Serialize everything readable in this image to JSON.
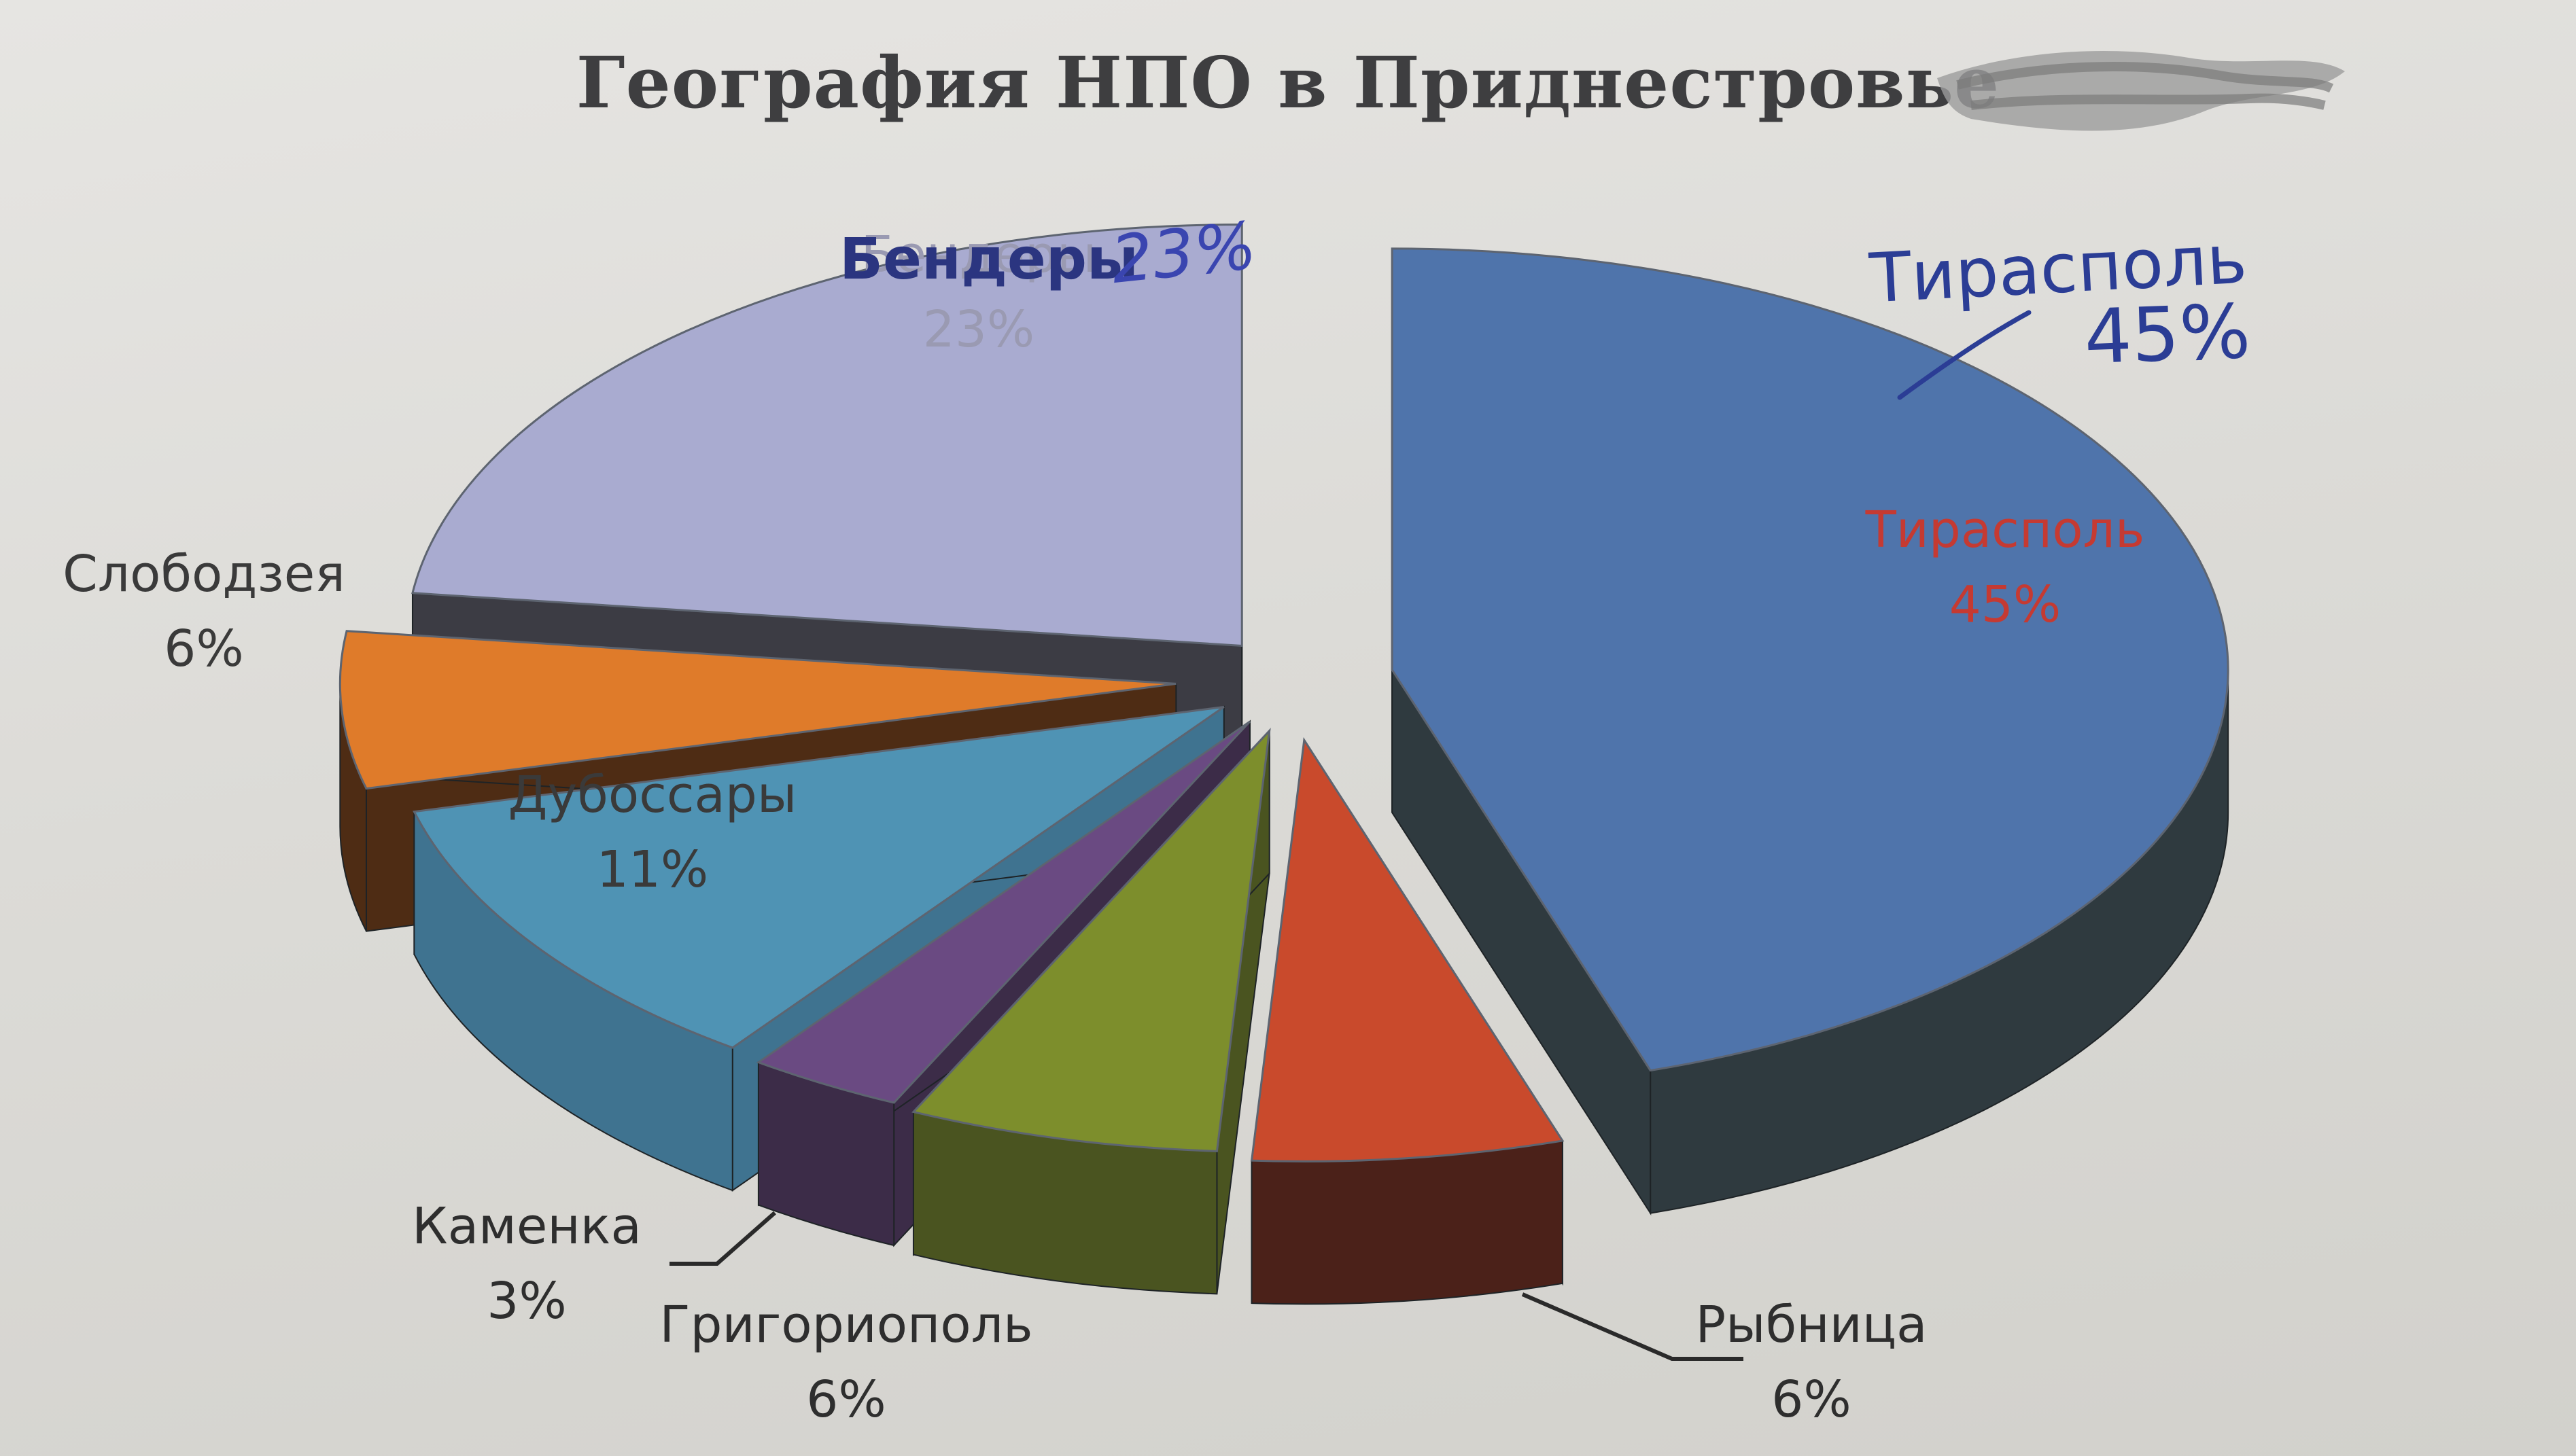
{
  "title": "География НПО в Приднестровье",
  "chart_data": {
    "type": "pie",
    "title": "География НПО в Приднестровье",
    "slices": [
      {
        "label": "Тирасполь",
        "value": 45,
        "value_label": "45%",
        "color": "#4f74ab",
        "side": "#2f3a3f",
        "label_color": "#c53a32"
      },
      {
        "label": "Рыбница",
        "value": 6,
        "value_label": "6%",
        "color": "#c94a2c",
        "side": "#4b2119",
        "label_color": "#2e2e2e"
      },
      {
        "label": "Григориополь",
        "value": 6,
        "value_label": "6%",
        "color": "#7d8e2c",
        "side": "#4a5420",
        "label_color": "#2e2e2e"
      },
      {
        "label": "Каменка",
        "value": 3,
        "value_label": "3%",
        "color": "#6a4a82",
        "side": "#3c2c48",
        "label_color": "#2e2e2e"
      },
      {
        "label": "Дубоссары",
        "value": 11,
        "value_label": "11%",
        "color": "#4f93b4",
        "side": "#3f7390",
        "label_color": "#3a3a3a"
      },
      {
        "label": "Слободзея",
        "value": 6,
        "value_label": "6%",
        "color": "#df7b2a",
        "side": "#4e2c14",
        "label_color": "#3a3a3a"
      },
      {
        "label": "Бендеры",
        "value": 23,
        "value_label": "23%",
        "color": "#a9abd0",
        "side": "#3c3c44",
        "label_color": "#9a9ab2"
      }
    ],
    "annotations": [
      {
        "text": "Тирасполь",
        "color": "#2b3d95"
      },
      {
        "text": "45%",
        "color": "#2b3d95"
      },
      {
        "text": "Бендеры",
        "color": "#2b3580"
      },
      {
        "text": "23%",
        "color": "#3a45b0"
      }
    ]
  }
}
